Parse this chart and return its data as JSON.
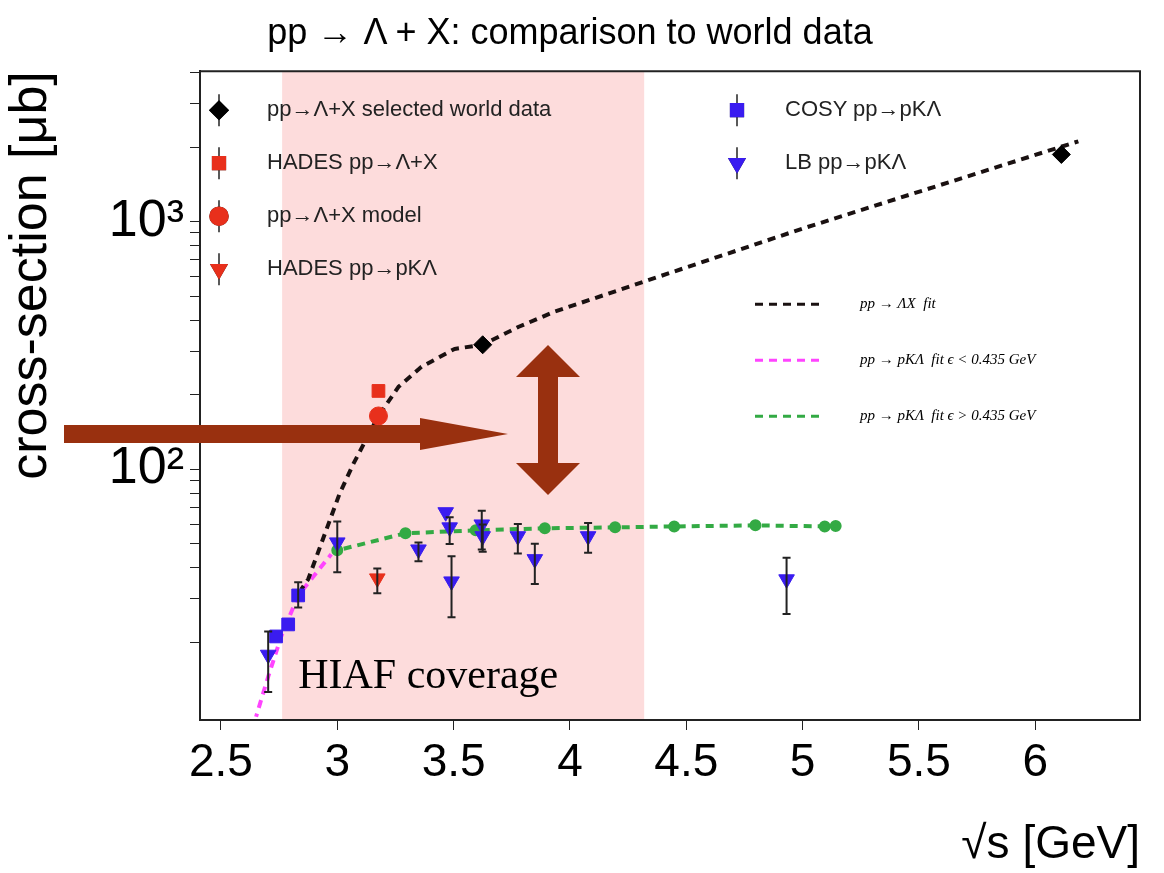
{
  "chart_data": {
    "type": "scatter",
    "title": "pp → Λ + X: comparison to world data",
    "xlabel": "√s [GeV]",
    "ylabel": "cross-section [μb]",
    "xlim": [
      2.41,
      6.45
    ],
    "xticks": [
      2.5,
      3,
      3.5,
      4,
      4.5,
      5,
      5.5,
      6
    ],
    "ylim": [
      9.7,
      4050
    ],
    "yticks": [
      {
        "value": 20,
        "label": null
      },
      {
        "value": 30,
        "label": null
      },
      {
        "value": 40,
        "label": null
      },
      {
        "value": 50,
        "label": null
      },
      {
        "value": 60,
        "label": null
      },
      {
        "value": 70,
        "label": null
      },
      {
        "value": 80,
        "label": null
      },
      {
        "value": 90,
        "label": null
      },
      {
        "value": 100,
        "label": "10²"
      },
      {
        "value": 200,
        "label": null
      },
      {
        "value": 300,
        "label": null
      },
      {
        "value": 400,
        "label": null
      },
      {
        "value": 500,
        "label": null
      },
      {
        "value": 600,
        "label": null
      },
      {
        "value": 700,
        "label": null
      },
      {
        "value": 800,
        "label": null
      },
      {
        "value": 900,
        "label": null
      },
      {
        "value": 1000,
        "label": "10³"
      },
      {
        "value": 2000,
        "label": null
      },
      {
        "value": 3000,
        "label": null
      },
      {
        "value": 4000,
        "label": null
      }
    ],
    "log": "y",
    "grid": false,
    "legend": "top",
    "bands": [
      {
        "axis": "x",
        "from": 2.763,
        "to": 4.319,
        "label": "HIAF coverage",
        "color": "#fddcdc"
      }
    ],
    "series": [
      {
        "name": "pp→Λ+X selected world data",
        "type": "scatter",
        "marker": "diamond",
        "color": "#000000",
        "x": [
          3.625,
          6.112
        ],
        "values": [
          318,
          1867
        ]
      },
      {
        "name": "HADES pp→Λ+X",
        "type": "scatter",
        "marker": "square",
        "color": "#e8301c",
        "x": [
          3.177
        ],
        "values": [
          207
        ]
      },
      {
        "name": "pp→Λ+X model",
        "type": "scatter",
        "marker": "circle",
        "color": "#e8301c",
        "x": [
          3.177
        ],
        "values": [
          164
        ]
      },
      {
        "name": "HADES pp→pKΛ",
        "type": "scatter",
        "marker": "triangle",
        "color": "#e8301c",
        "x": [
          3.172
        ],
        "values": [
          36.2
        ],
        "errors": [
          [
            31.5,
            39.7
          ]
        ]
      },
      {
        "name": "COSY pp→pKΛ",
        "type": "scatter",
        "marker": "square",
        "color": "#3a1cf0",
        "x": [
          2.737,
          2.789,
          2.832
        ],
        "values": [
          21.1,
          23.6,
          30.9
        ],
        "errors": [
          null,
          null,
          [
            27.6,
            34.9
          ]
        ]
      },
      {
        "name": "LB pp→pKΛ",
        "type": "scatter",
        "marker": "triangle",
        "color": "#3a1cf0",
        "x": [
          2.703,
          3.0,
          3.349,
          3.466,
          3.483,
          3.491,
          3.621,
          3.625,
          3.776,
          3.849,
          4.078,
          4.931
        ],
        "values": [
          17.8,
          50.6,
          47.4,
          67.0,
          58.2,
          35.2,
          59.8,
          53.6,
          53.6,
          43.3,
          53.6,
          35.9
        ],
        "errors": [
          [
            12.6,
            22.1
          ],
          [
            38.3,
            61.5
          ],
          [
            42.5,
            50.6
          ],
          null,
          [
            49.8,
            64.0
          ],
          [
            25.2,
            44.5
          ],
          [
            47.4,
            67.9
          ],
          [
            46.4,
            59.8
          ],
          [
            45.6,
            60.0
          ],
          [
            34.4,
            50.0
          ],
          [
            46.0,
            60.6
          ],
          [
            26.0,
            43.9
          ]
        ]
      },
      {
        "name": "pp → ΛX  fit",
        "type": "line",
        "marker": "none",
        "line_style": "dashed",
        "color": "#1a1111",
        "x": [
          2.845,
          2.875,
          3.009,
          3.069,
          3.177,
          3.263,
          3.362,
          3.504,
          3.625,
          3.78,
          3.935,
          4.483,
          5.0,
          6.185
        ],
        "values": [
          32.7,
          35.9,
          79.2,
          105,
          164,
          215,
          259,
          306,
          318,
          376,
          433,
          645,
          937,
          2110
        ]
      },
      {
        "name": "pp → pKΛ  fit ϵ < 0.435 GeV",
        "type": "line",
        "marker": "none",
        "line_style": "dashed",
        "color": "#ff44ff",
        "x": [
          2.651,
          2.703,
          2.759,
          2.832,
          2.974
        ],
        "values": [
          10.0,
          14.5,
          21.1,
          30.9,
          45.3
        ]
      },
      {
        "name": "pp → pKΛ  fit ϵ > 0.435 GeV",
        "type": "line",
        "marker": "circle",
        "line_style": "dashed",
        "color": "#33aa44",
        "x": [
          3.0,
          3.293,
          3.595,
          3.892,
          4.194,
          4.448,
          4.797,
          5.095,
          5.142
        ],
        "values": [
          47.0,
          55.1,
          56.6,
          57.7,
          58.2,
          58.7,
          59.3,
          58.7,
          59.0
        ]
      }
    ]
  }
}
